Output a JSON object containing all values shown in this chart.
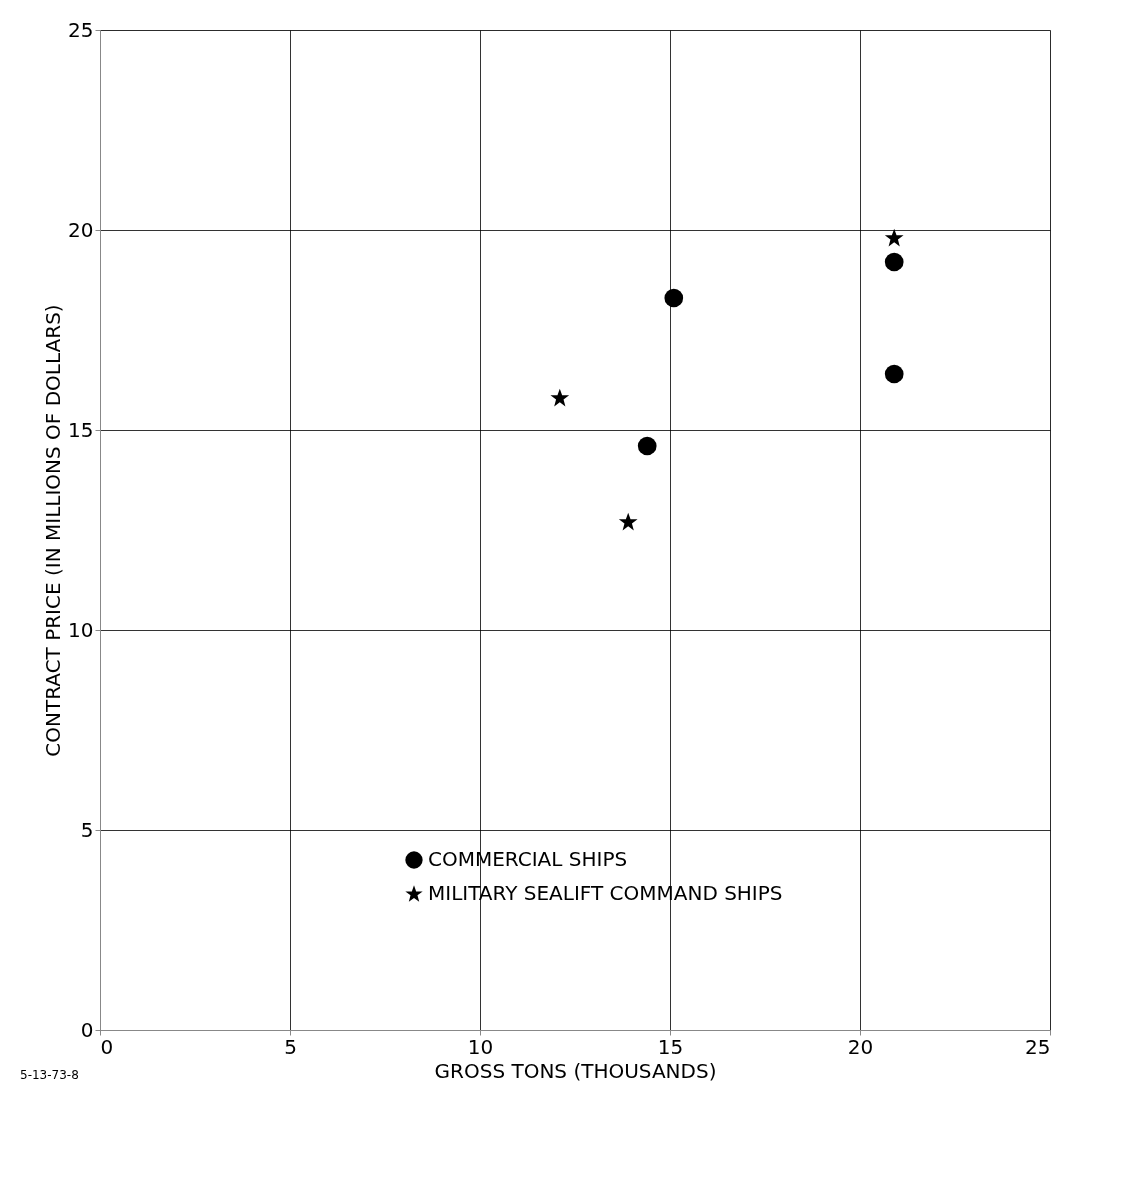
{
  "chart_data": {
    "type": "scatter",
    "xlabel": "GROSS TONS (THOUSANDS)",
    "ylabel": "CONTRACT PRICE (IN MILLIONS OF DOLLARS)",
    "series": [
      {
        "name": "COMMERCIAL SHIPS",
        "color": "#000000",
        "marker": "circle",
        "x": [
          14.4,
          15.1,
          20.9,
          20.9
        ],
        "values": [
          14.6,
          18.3,
          19.2,
          16.4
        ]
      },
      {
        "name": "MILITARY SEALIFT COMMAND SHIPS",
        "color": "#000000",
        "marker": "star",
        "x": [
          12.1,
          13.9,
          20.9
        ],
        "values": [
          15.8,
          12.7,
          19.8
        ]
      }
    ],
    "xlim": [
      0,
      25
    ],
    "ylim": [
      0,
      25
    ],
    "xticks": [
      0,
      5,
      10,
      15,
      20,
      25
    ],
    "yticks": [
      0,
      5,
      10,
      15,
      20,
      25
    ],
    "grid": true,
    "legend": "bottom",
    "annotations": [
      "5-13-73-8"
    ]
  }
}
